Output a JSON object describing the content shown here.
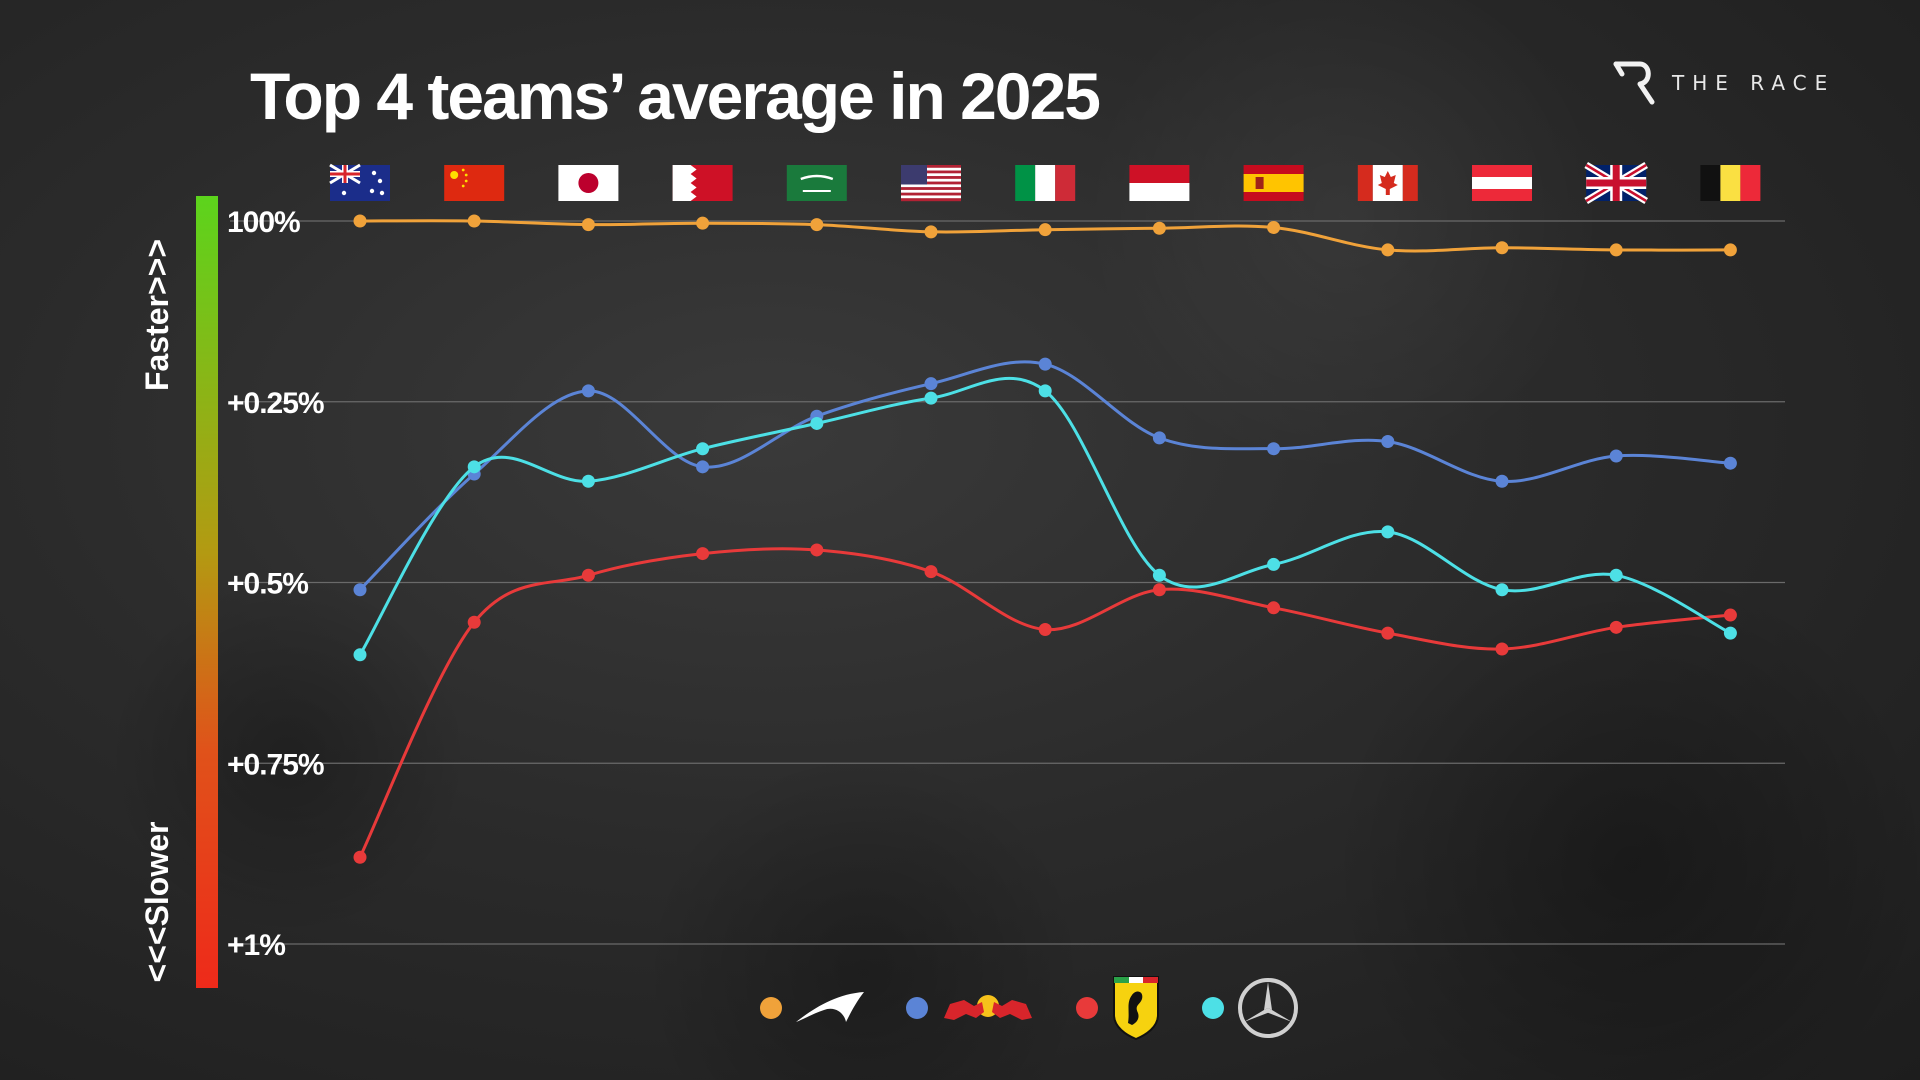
{
  "title": "Top 4 teams’ average in 2025",
  "brand": {
    "name": "THE RACE"
  },
  "colors": {
    "mclaren": "#f0a23a",
    "redbull": "#5b84d6",
    "ferrari": "#e83a3a",
    "mercedes": "#4de0e6",
    "grid": "#6a6a6a",
    "bar_top": "#5cd41c",
    "bar_bottom": "#ee2a1a"
  },
  "scale_labels": {
    "faster": "Faster>>>",
    "slower": "<<<Slower"
  },
  "legend": [
    {
      "team": "McLaren",
      "icon": "mclaren-logo-icon",
      "color_key": "mclaren"
    },
    {
      "team": "Red Bull",
      "icon": "redbull-logo-icon",
      "color_key": "redbull"
    },
    {
      "team": "Ferrari",
      "icon": "ferrari-logo-icon",
      "color_key": "ferrari"
    },
    {
      "team": "Mercedes",
      "icon": "mercedes-logo-icon",
      "color_key": "mercedes"
    }
  ],
  "chart_data": {
    "type": "line",
    "categories": [
      "Australia",
      "China",
      "Japan",
      "Bahrain",
      "Saudi Arabia",
      "USA",
      "Italy",
      "Monaco",
      "Spain",
      "Canada",
      "Austria",
      "Great Britain",
      "Belgium"
    ],
    "category_icons": [
      "australia-flag-icon",
      "china-flag-icon",
      "japan-flag-icon",
      "bahrain-flag-icon",
      "saudi-arabia-flag-icon",
      "usa-flag-icon",
      "italy-flag-icon",
      "monaco-flag-icon",
      "spain-flag-icon",
      "canada-flag-icon",
      "austria-flag-icon",
      "uk-flag-icon",
      "belgium-flag-icon"
    ],
    "yticks": [
      {
        "value": 0,
        "label": "100%"
      },
      {
        "value": 0.25,
        "label": "+0.25%"
      },
      {
        "value": 0.5,
        "label": "+0.5%"
      },
      {
        "value": 0.75,
        "label": "+0.75%"
      },
      {
        "value": 1,
        "label": "+1%"
      }
    ],
    "ylim": [
      0,
      1
    ],
    "y_direction": "inverted",
    "grid": true,
    "series": [
      {
        "color_key": "mclaren",
        "values": [
          0.0,
          0.0,
          0.005,
          0.003,
          0.005,
          0.015,
          0.012,
          0.01,
          0.009,
          0.04,
          0.037,
          0.04,
          0.04
        ]
      },
      {
        "color_key": "redbull",
        "values": [
          0.51,
          0.35,
          0.235,
          0.34,
          0.27,
          0.225,
          0.198,
          0.3,
          0.315,
          0.305,
          0.36,
          0.325,
          0.335
        ]
      },
      {
        "color_key": "ferrari",
        "values": [
          0.88,
          0.555,
          0.49,
          0.46,
          0.455,
          0.485,
          0.565,
          0.51,
          0.535,
          0.57,
          0.592,
          0.562,
          0.545
        ]
      },
      {
        "color_key": "mercedes",
        "values": [
          0.6,
          0.34,
          0.36,
          0.315,
          0.28,
          0.245,
          0.235,
          0.49,
          0.475,
          0.43,
          0.51,
          0.49,
          0.57
        ]
      }
    ]
  }
}
